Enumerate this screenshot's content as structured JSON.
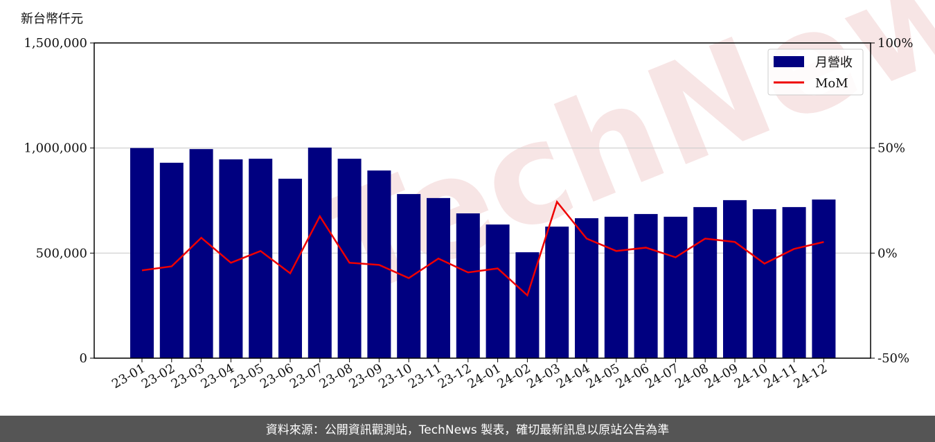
{
  "chart_data": {
    "type": "bar_line",
    "y_label": "新台幣仟元",
    "watermark": "TechNews",
    "footer": "資料來源：公開資訊觀測站，TechNews 製表，確切最新訊息以原站公告為準",
    "categories": [
      "23-01",
      "23-02",
      "23-03",
      "23-04",
      "23-05",
      "23-06",
      "23-07",
      "23-08",
      "23-09",
      "23-10",
      "23-11",
      "23-12",
      "24-01",
      "24-02",
      "24-03",
      "24-04",
      "24-05",
      "24-06",
      "24-07",
      "24-08",
      "24-09",
      "24-10",
      "24-11",
      "24-12"
    ],
    "series": [
      {
        "name": "月營收",
        "color": "#000080",
        "type": "bar",
        "values": [
          1000000,
          930000,
          995000,
          946000,
          949000,
          854000,
          1002000,
          949000,
          893000,
          781000,
          762000,
          689000,
          636000,
          504000,
          626000,
          666000,
          673000,
          686000,
          673000,
          719000,
          752000,
          709000,
          719000,
          755000
        ]
      },
      {
        "name": "MoM",
        "color": "#ee0000",
        "type": "line",
        "axis": "y2",
        "values": [
          -8.2,
          -6.3,
          7.3,
          -4.6,
          1.0,
          -9.6,
          17.5,
          -4.6,
          -5.6,
          -11.9,
          -2.6,
          -9.2,
          -7.3,
          -20.1,
          24.4,
          6.9,
          1.0,
          2.6,
          -2.0,
          6.9,
          5.3,
          -5.0,
          2.0,
          5.3
        ]
      }
    ],
    "ylim": [
      0,
      1500000
    ],
    "yticks": [
      {
        "value": 0,
        "label": "0"
      },
      {
        "value": 500000,
        "label": "500,000"
      },
      {
        "value": 1000000,
        "label": "1,000,000"
      },
      {
        "value": 1500000,
        "label": "1,500,000"
      }
    ],
    "y2lim": [
      -50,
      100
    ],
    "y2ticks": [
      {
        "value": -50,
        "label": "-50%"
      },
      {
        "value": 0,
        "label": "0%"
      },
      {
        "value": 50,
        "label": "50%"
      },
      {
        "value": 100,
        "label": "100%"
      }
    ],
    "grid": true,
    "legend": "upper right"
  }
}
